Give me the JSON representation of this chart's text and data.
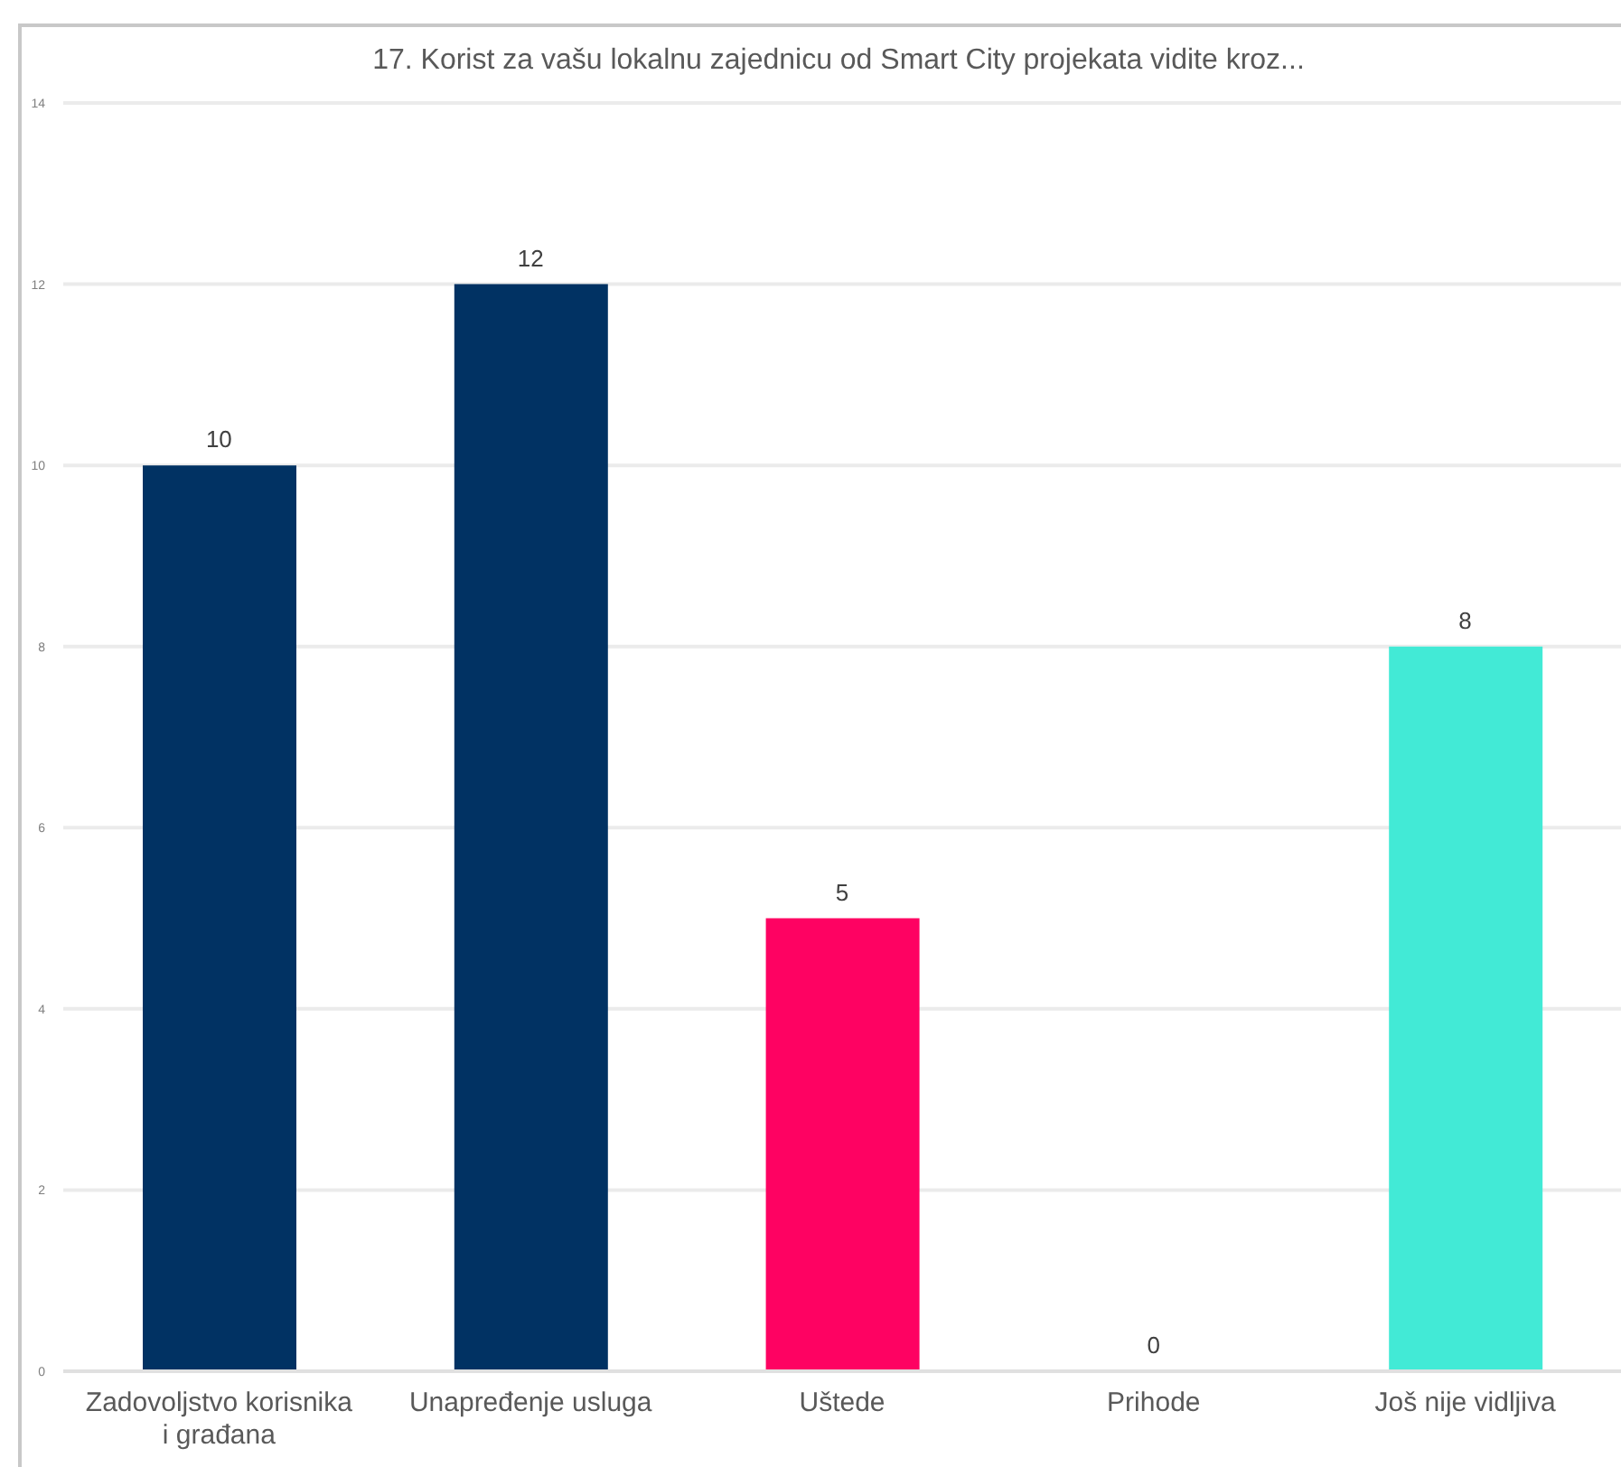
{
  "chart_data": {
    "type": "bar",
    "title": "17. Korist za vašu lokalnu zajednicu od Smart City projekata vidite kroz...",
    "categories": [
      "Zadovoljstvo korisnika i građana",
      "Unapređenje usluga",
      "Uštede",
      "Prihode",
      "Još nije vidljiva"
    ],
    "values": [
      10,
      12,
      5,
      0,
      8
    ],
    "colors": [
      "#013263",
      "#013263",
      "#fe0262",
      "#fe0262",
      "#42ead6"
    ],
    "ylim": [
      0,
      14
    ],
    "yticks": [
      0,
      2,
      4,
      6,
      8,
      10,
      12,
      14
    ],
    "grid": "y",
    "data_labels": true
  }
}
